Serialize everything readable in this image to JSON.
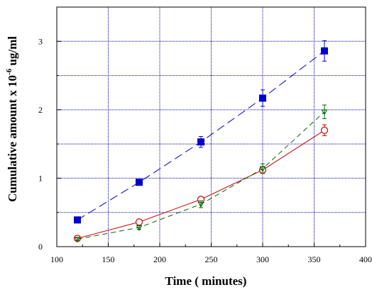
{
  "chart_data": {
    "type": "scatter",
    "xlabel": "Time ( minutes)",
    "ylabel_main": "Cumulative amount x 10",
    "ylabel_exp": "-6",
    "ylabel_unit": " ug/ml",
    "xlim": [
      100,
      400
    ],
    "ylim": [
      0,
      3.5
    ],
    "x_ticks": [
      100,
      150,
      200,
      250,
      300,
      350,
      400
    ],
    "x_tick_labels": [
      "100",
      "150",
      "200",
      "250",
      "300",
      "350",
      "400"
    ],
    "y_ticks": [
      0,
      1,
      2,
      3
    ],
    "y_tick_labels": [
      "0",
      "1",
      "2",
      "3"
    ],
    "y_minor_grid": [
      0.5,
      1.5,
      2.5
    ],
    "grid": true,
    "series": [
      {
        "marker": "square",
        "color": "#0000cc",
        "line_style": "long-dash",
        "x": [
          120,
          180,
          240,
          300,
          360
        ],
        "y": [
          0.39,
          0.94,
          1.53,
          2.17,
          2.86
        ],
        "err": [
          0,
          0,
          0.08,
          0.12,
          0.15
        ]
      },
      {
        "marker": "circle",
        "color": "#cc0000",
        "line_style": "solid",
        "x": [
          120,
          180,
          240,
          300,
          360
        ],
        "y": [
          0.12,
          0.36,
          0.69,
          1.12,
          1.7
        ],
        "err": [
          0.03,
          0.03,
          0.04,
          0.05,
          0.08
        ]
      },
      {
        "marker": "triangle",
        "color": "#006600",
        "line_style": "dash",
        "x": [
          120,
          180,
          240,
          300,
          360
        ],
        "y": [
          0.11,
          0.28,
          0.62,
          1.14,
          1.97
        ],
        "err": [
          0.02,
          0.03,
          0.05,
          0.07,
          0.1
        ]
      }
    ]
  }
}
